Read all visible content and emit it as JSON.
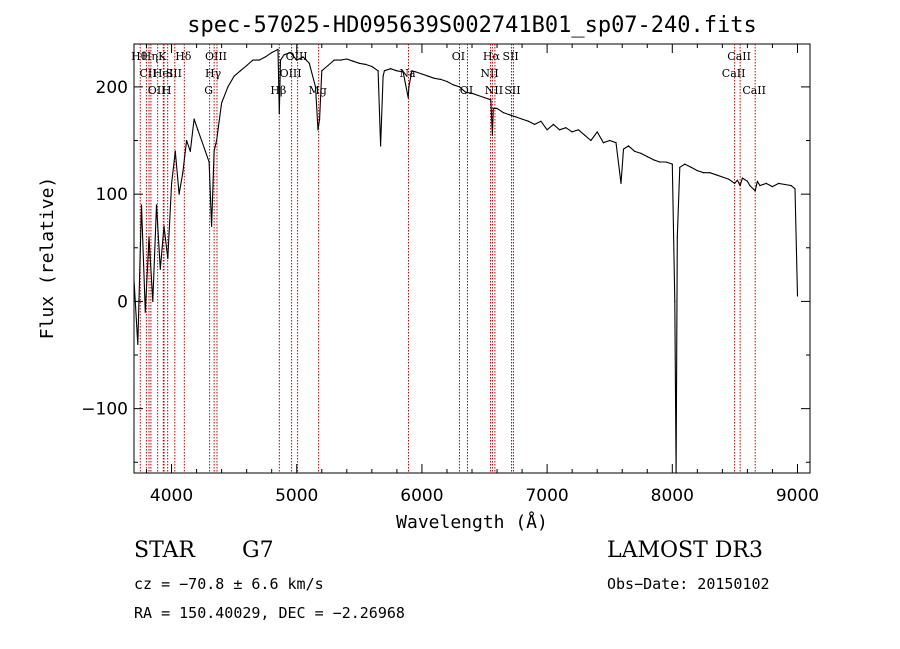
{
  "chart_data": {
    "type": "line",
    "title": "spec-57025-HD095639S002741B01_sp07-240.fits",
    "xlabel": "Wavelength (Å)",
    "ylabel": "Flux (relative)",
    "xlim": [
      3700,
      9100
    ],
    "ylim": [
      -160,
      240
    ],
    "xticks": [
      4000,
      5000,
      6000,
      7000,
      8000,
      9000
    ],
    "xtick_labels": [
      "4000",
      "5000",
      "6000",
      "7000",
      "8000",
      "9000"
    ],
    "yticks": [
      -100,
      0,
      100,
      200
    ],
    "ytick_labels": [
      "−100",
      "0",
      "100",
      "200"
    ],
    "series": [
      {
        "name": "spectrum",
        "x": [
          3700,
          3730,
          3760,
          3790,
          3820,
          3850,
          3880,
          3910,
          3940,
          3970,
          4000,
          4030,
          4060,
          4090,
          4120,
          4150,
          4180,
          4210,
          4240,
          4270,
          4300,
          4320,
          4340,
          4360,
          4400,
          4450,
          4500,
          4550,
          4600,
          4650,
          4700,
          4750,
          4800,
          4850,
          4861,
          4870,
          4900,
          4950,
          5000,
          5050,
          5100,
          5150,
          5170,
          5183,
          5200,
          5250,
          5300,
          5350,
          5400,
          5450,
          5500,
          5550,
          5600,
          5650,
          5670,
          5690,
          5700,
          5750,
          5800,
          5850,
          5890,
          5896,
          5920,
          5950,
          6000,
          6050,
          6100,
          6150,
          6200,
          6250,
          6300,
          6350,
          6400,
          6450,
          6500,
          6550,
          6563,
          6570,
          6600,
          6650,
          6700,
          6750,
          6800,
          6850,
          6900,
          6950,
          7000,
          7050,
          7100,
          7150,
          7200,
          7250,
          7300,
          7350,
          7400,
          7450,
          7500,
          7550,
          7590,
          7610,
          7650,
          7700,
          7750,
          7800,
          7850,
          7900,
          7950,
          8000,
          8020,
          8030,
          8040,
          8060,
          8100,
          8150,
          8200,
          8250,
          8300,
          8350,
          8400,
          8450,
          8498,
          8520,
          8542,
          8560,
          8600,
          8620,
          8662,
          8680,
          8700,
          8750,
          8800,
          8850,
          8900,
          8950,
          8980,
          9000
        ],
        "values": [
          20,
          -40,
          90,
          -10,
          60,
          0,
          90,
          30,
          70,
          40,
          110,
          140,
          100,
          120,
          150,
          140,
          170,
          160,
          150,
          140,
          130,
          70,
          140,
          150,
          185,
          200,
          210,
          215,
          220,
          225,
          225,
          228,
          232,
          235,
          175,
          225,
          230,
          232,
          225,
          228,
          222,
          200,
          160,
          170,
          215,
          220,
          225,
          225,
          226,
          224,
          222,
          221,
          219,
          215,
          145,
          210,
          215,
          217,
          215,
          214,
          190,
          200,
          215,
          214,
          212,
          210,
          208,
          207,
          205,
          202,
          200,
          195,
          194,
          192,
          190,
          188,
          155,
          180,
          180,
          176,
          174,
          172,
          170,
          168,
          165,
          168,
          160,
          165,
          160,
          162,
          158,
          160,
          155,
          150,
          158,
          148,
          150,
          148,
          110,
          142,
          145,
          140,
          138,
          135,
          132,
          130,
          130,
          128,
          0,
          -160,
          60,
          125,
          128,
          125,
          122,
          120,
          120,
          118,
          116,
          114,
          110,
          113,
          108,
          115,
          112,
          108,
          103,
          112,
          108,
          110,
          107,
          110,
          109,
          108,
          105,
          5
        ],
        "color": "#000000"
      }
    ],
    "spectral_lines": [
      {
        "wl": 3750,
        "label": "Hθ",
        "row": 0
      },
      {
        "wl": 3799,
        "label": "",
        "row": 0
      },
      {
        "wl": 3820,
        "label": "CII",
        "row": 1
      },
      {
        "wl": 3835,
        "label": "Hη",
        "row": 0
      },
      {
        "wl": 3889,
        "label": "OII",
        "row": 2
      },
      {
        "wl": 3934,
        "label": "K",
        "row": 0
      },
      {
        "wl": 3940,
        "label": "HeI",
        "row": 1
      },
      {
        "wl": 3969,
        "label": "H",
        "row": 2
      },
      {
        "wl": 4026,
        "label": "SII",
        "row": 1
      },
      {
        "wl": 4102,
        "label": "Hδ",
        "row": 0
      },
      {
        "wl": 4304,
        "label": "G",
        "row": 2
      },
      {
        "wl": 4340,
        "label": "Hγ",
        "row": 1
      },
      {
        "wl": 4363,
        "label": "OIII",
        "row": 0
      },
      {
        "wl": 4861,
        "label": "Hβ",
        "row": 2
      },
      {
        "wl": 4959,
        "label": "OIII",
        "row": 1
      },
      {
        "wl": 5007,
        "label": "OIII",
        "row": 0
      },
      {
        "wl": 5175,
        "label": "Mg",
        "row": 2
      },
      {
        "wl": 5893,
        "label": "Na",
        "row": 1
      },
      {
        "wl": 6300,
        "label": "OI",
        "row": 0
      },
      {
        "wl": 6364,
        "label": "OI",
        "row": 2
      },
      {
        "wl": 6548,
        "label": "NII",
        "row": 1
      },
      {
        "wl": 6563,
        "label": "Hα",
        "row": 0
      },
      {
        "wl": 6583,
        "label": "NII",
        "row": 2
      },
      {
        "wl": 6716,
        "label": "SII",
        "row": 0
      },
      {
        "wl": 6731,
        "label": "SII",
        "row": 2
      },
      {
        "wl": 8498,
        "label": "CaII",
        "row": 1
      },
      {
        "wl": 8542,
        "label": "CaII",
        "row": 0
      },
      {
        "wl": 8662,
        "label": "CaII",
        "row": 2
      }
    ],
    "line_color": "#c00000"
  },
  "info": {
    "object_class": "STAR",
    "subclass": "G7",
    "survey": "LAMOST DR3",
    "cz": "cz = −70.8 ± 6.6 km/s",
    "obs_date": "Obs−Date: 20150102",
    "radec": "RA = 150.40029, DEC =  −2.26968"
  }
}
